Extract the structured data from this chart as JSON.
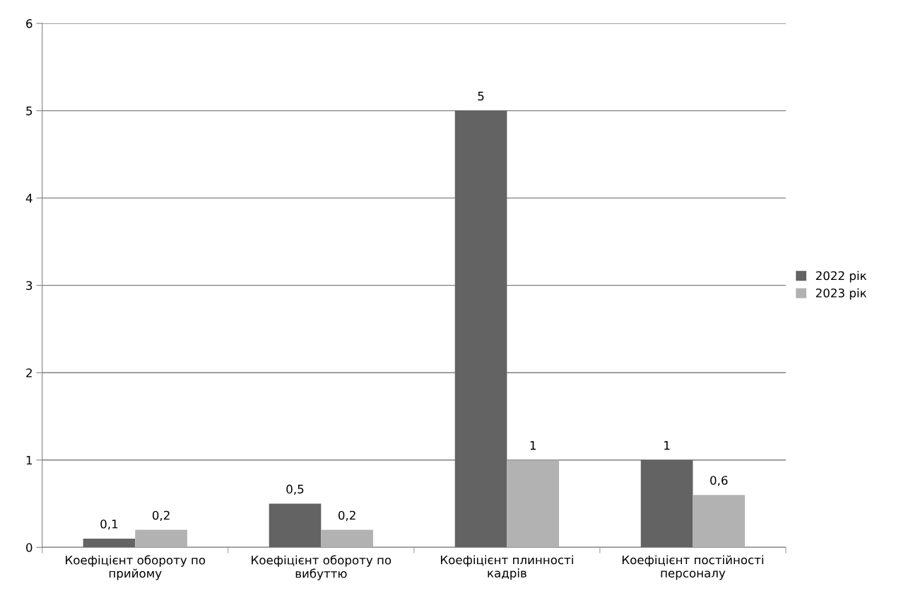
{
  "chart_data": {
    "type": "bar",
    "categories": [
      "Коефіцієнт обороту по прийому",
      "Коефіцієнт обороту по вибуттю",
      "Коефіцієнт плинності кадрів",
      "Коефіцієнт постійності персоналу"
    ],
    "series": [
      {
        "name": "2022 рік",
        "color": "#636363",
        "values": [
          0.1,
          0.5,
          5,
          1
        ],
        "value_labels": [
          "0,1",
          "0,5",
          "5",
          "1"
        ]
      },
      {
        "name": "2023 рік",
        "color": "#b2b2b2",
        "values": [
          0.2,
          0.2,
          1,
          0.6
        ],
        "value_labels": [
          "0,2",
          "0,2",
          "1",
          "0,6"
        ]
      }
    ],
    "ylim": [
      0,
      6
    ],
    "yticks": [
      0,
      1,
      2,
      3,
      4,
      5,
      6
    ],
    "grid": "y",
    "legend": "right"
  }
}
